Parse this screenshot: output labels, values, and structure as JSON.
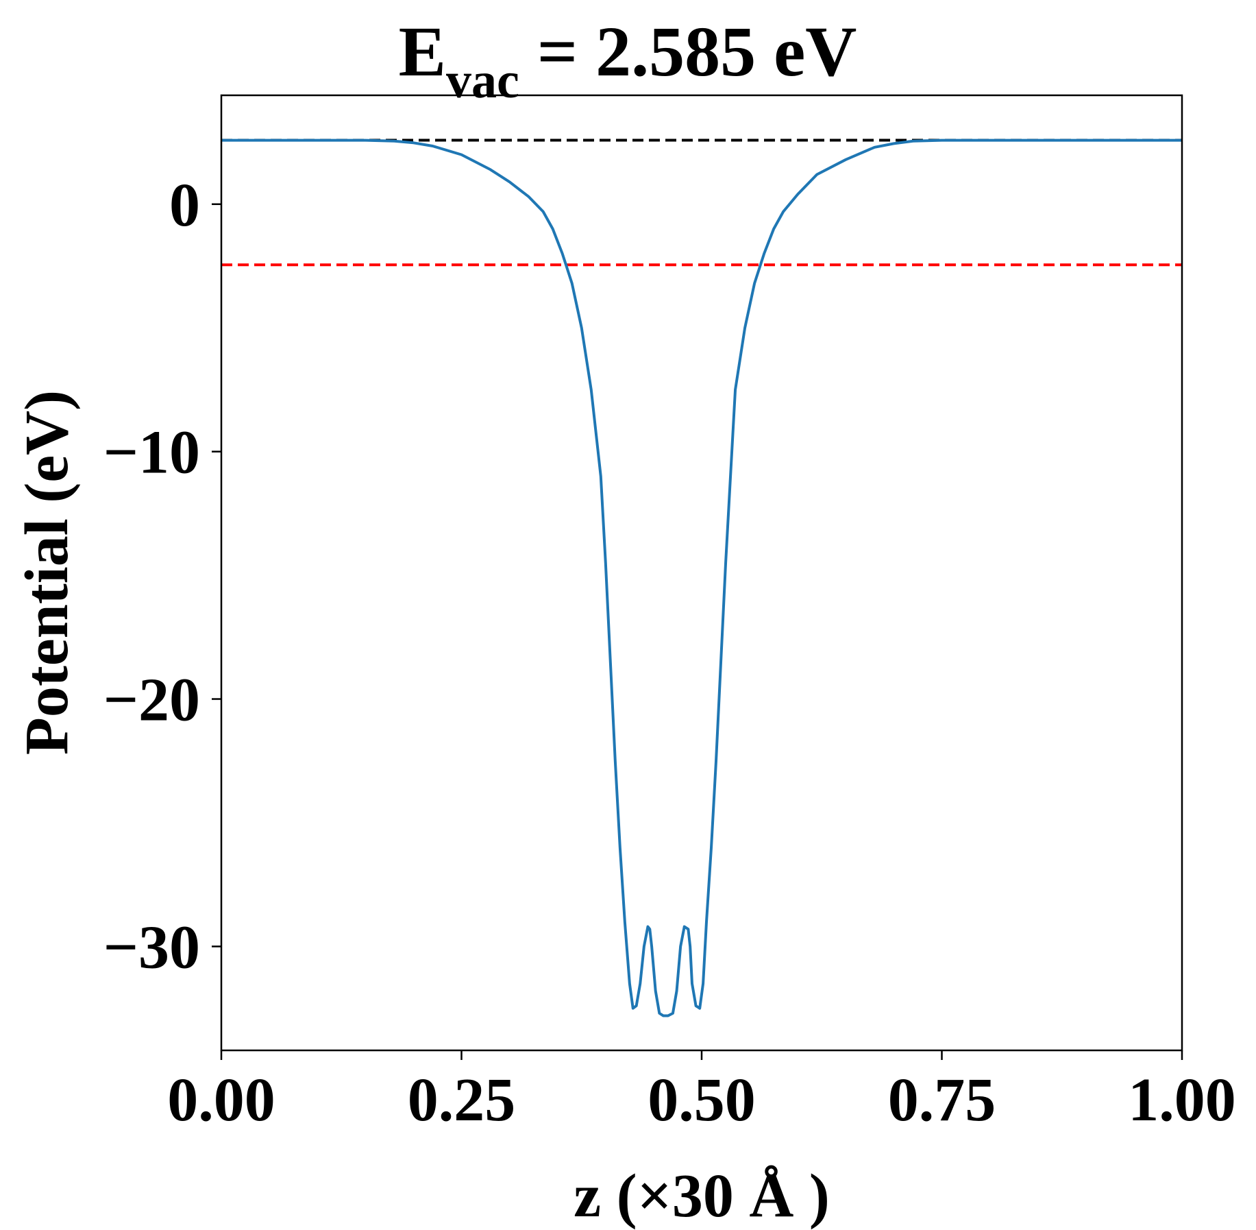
{
  "chart_data": {
    "type": "line",
    "title": {
      "main": "E",
      "subscript": "vac",
      "rest": " = 2.585 eV"
    },
    "xlabel": "z (×30 Å )",
    "ylabel": "Potential (eV)",
    "xlim": [
      0,
      1
    ],
    "ylim": [
      -34.2,
      4.4
    ],
    "xticks": [
      0.0,
      0.25,
      0.5,
      0.75,
      1.0
    ],
    "xtick_labels": [
      "0.00",
      "0.25",
      "0.50",
      "0.75",
      "1.00"
    ],
    "yticks": [
      0,
      -10,
      -20,
      -30
    ],
    "ytick_labels": [
      "0",
      "−10",
      "−20",
      "−30"
    ],
    "grid": false,
    "reference_lines": [
      {
        "value": 2.585,
        "color": "#000000",
        "style": "dashed"
      },
      {
        "value": -2.45,
        "color": "#ff0000",
        "style": "dashed"
      }
    ],
    "series": [
      {
        "color": "#1f77b4",
        "x": [
          0.0,
          0.05,
          0.1,
          0.15,
          0.18,
          0.2,
          0.22,
          0.25,
          0.28,
          0.3,
          0.32,
          0.335,
          0.345,
          0.355,
          0.365,
          0.375,
          0.385,
          0.395,
          0.4,
          0.405,
          0.41,
          0.415,
          0.42,
          0.425,
          0.4285,
          0.432,
          0.436,
          0.44,
          0.444,
          0.446,
          0.448,
          0.452,
          0.456,
          0.46,
          0.465,
          0.47,
          0.474,
          0.478,
          0.482,
          0.486,
          0.488,
          0.49,
          0.494,
          0.498,
          0.5015,
          0.505,
          0.51,
          0.515,
          0.52,
          0.525,
          0.53,
          0.535,
          0.545,
          0.555,
          0.565,
          0.575,
          0.585,
          0.6,
          0.62,
          0.65,
          0.68,
          0.7,
          0.72,
          0.75,
          0.8,
          0.85,
          0.9,
          0.95,
          1.0
        ],
        "y": [
          2.58,
          2.58,
          2.58,
          2.58,
          2.55,
          2.48,
          2.35,
          2.0,
          1.4,
          0.9,
          0.3,
          -0.3,
          -1.0,
          -2.0,
          -3.2,
          -5.0,
          -7.5,
          -11.0,
          -14.5,
          -18.5,
          -22.5,
          -26.0,
          -29.0,
          -31.5,
          -32.5,
          -32.4,
          -31.5,
          -30.0,
          -29.2,
          -29.3,
          -30.0,
          -31.8,
          -32.7,
          -32.8,
          -32.8,
          -32.7,
          -31.8,
          -30.0,
          -29.2,
          -29.3,
          -30.0,
          -31.5,
          -32.4,
          -32.5,
          -31.5,
          -29.0,
          -26.0,
          -22.5,
          -18.5,
          -14.5,
          -11.0,
          -7.5,
          -5.0,
          -3.2,
          -2.0,
          -1.0,
          -0.3,
          0.4,
          1.2,
          1.8,
          2.3,
          2.45,
          2.55,
          2.58,
          2.58,
          2.58,
          2.58,
          2.58,
          2.58
        ]
      }
    ]
  }
}
